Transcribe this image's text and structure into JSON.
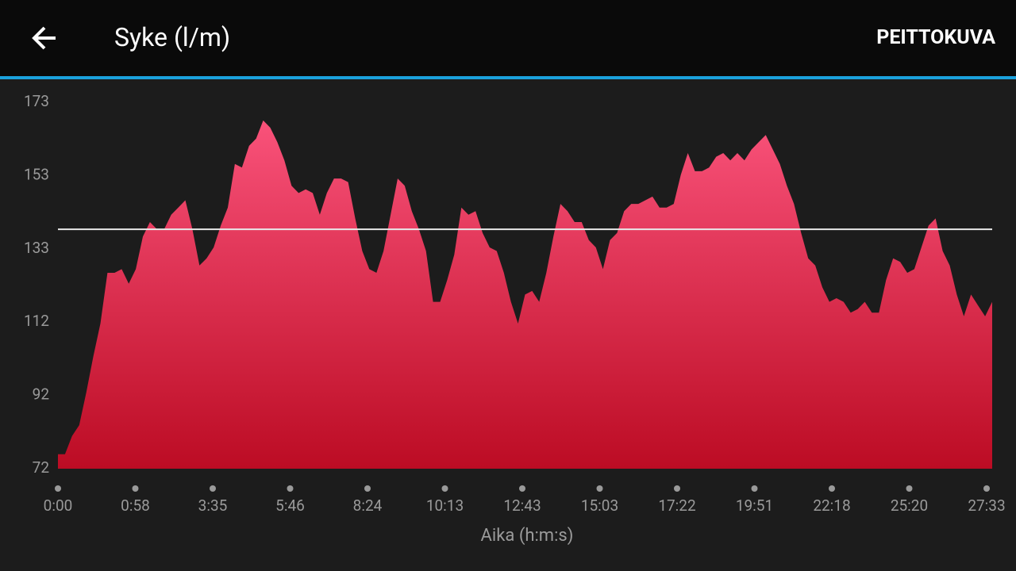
{
  "header": {
    "title": "Syke (l/m)",
    "action": "PEITTOKUVA"
  },
  "chart_data": {
    "type": "area",
    "x_axis_label": "Aika (h:m:s)",
    "x_tick_labels": [
      "0:00",
      "0:58",
      "3:35",
      "5:46",
      "8:24",
      "10:13",
      "12:43",
      "15:03",
      "17:22",
      "19:51",
      "22:18",
      "25:20",
      "27:33"
    ],
    "values": [
      76,
      76,
      81,
      84,
      93,
      103,
      112,
      126,
      126,
      127,
      123,
      127,
      136,
      140,
      138,
      138,
      142,
      144,
      146,
      138,
      128,
      130,
      133,
      139,
      144,
      156,
      155,
      161,
      163,
      168,
      166,
      162,
      157,
      150,
      148,
      149,
      148,
      142,
      148,
      152,
      152,
      151,
      141,
      132,
      127,
      126,
      132,
      142,
      152,
      150,
      143,
      138,
      132,
      118,
      118,
      124,
      131,
      144,
      142,
      143,
      137,
      133,
      132,
      126,
      118,
      112,
      120,
      121,
      118,
      126,
      136,
      145,
      143,
      140,
      140,
      135,
      133,
      127,
      135,
      137,
      143,
      145,
      145,
      146,
      147,
      144,
      144,
      145,
      153,
      159,
      154,
      154,
      155,
      158,
      159,
      157,
      159,
      157,
      160,
      162,
      164,
      160,
      156,
      150,
      145,
      137,
      130,
      128,
      122,
      118,
      119,
      118,
      115,
      116,
      118,
      115,
      115,
      124,
      130,
      129,
      126,
      127,
      133,
      139,
      141,
      132,
      128,
      120,
      114,
      120,
      117,
      114,
      118
    ],
    "average": 138,
    "gradient": [
      "#f9527a",
      "#bc0c24"
    ],
    "average_color": "#e8e8e8",
    "ylim": [
      72,
      173
    ],
    "yticks": [
      72,
      {
        "value": 92.2,
        "label": "92"
      },
      {
        "value": 112.4,
        "label": "112"
      },
      {
        "value": 132.6,
        "label": "133"
      },
      {
        "value": 152.8,
        "label": "153"
      },
      173
    ]
  }
}
